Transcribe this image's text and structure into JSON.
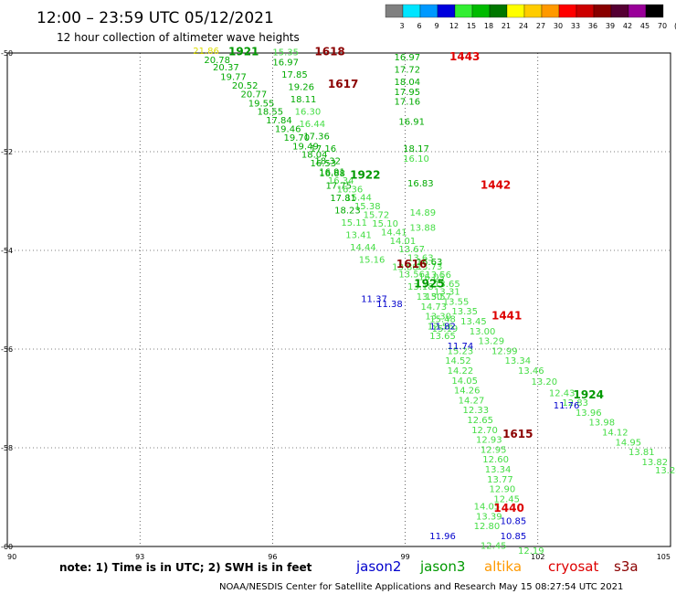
{
  "chart_data": {
    "type": "scatter",
    "title": "12:00 – 23:59 UTC 05/12/2021",
    "subtitle": "12 hour collection of altimeter wave heights",
    "xlim": [
      90,
      105
    ],
    "ylim": [
      -60,
      -50
    ],
    "x_ticks": [
      {
        "value": 90,
        "label": "90"
      },
      {
        "value": 93,
        "label": "93"
      },
      {
        "value": 96,
        "label": "96"
      },
      {
        "value": 99,
        "label": "99"
      },
      {
        "value": 102,
        "label": "102"
      },
      {
        "value": 105,
        "label": "105"
      }
    ],
    "y_ticks": [
      {
        "value": -50,
        "label": "-50"
      },
      {
        "value": -52,
        "label": "-52"
      },
      {
        "value": -54,
        "label": "-54"
      },
      {
        "value": -56,
        "label": "-56"
      },
      {
        "value": -58,
        "label": "-58"
      },
      {
        "value": -60,
        "label": "-60"
      }
    ],
    "grid": true,
    "colorbar": {
      "labels": [
        "3",
        "6",
        "9",
        "12",
        "15",
        "18",
        "21",
        "24",
        "27",
        "30",
        "33",
        "36",
        "39",
        "42",
        "45",
        "70",
        "(ft)"
      ],
      "colors": [
        "#808080",
        "#00e5ff",
        "#0099ff",
        "#0000dd",
        "#33ee33",
        "#00bb00",
        "#007700",
        "#ffff00",
        "#ffcc00",
        "#ff9900",
        "#ff0000",
        "#cc0000",
        "#880000",
        "#550033",
        "#990099",
        "#000000"
      ]
    },
    "series": [
      {
        "name": "pass-1921",
        "time_label": "1921",
        "time_pos": [
          95.0,
          -50.05
        ],
        "points": [
          {
            "x": 94.2,
            "y": -50.02,
            "v": "21.86"
          },
          {
            "x": 94.45,
            "y": -50.2,
            "v": "20.78"
          },
          {
            "x": 94.65,
            "y": -50.35,
            "v": "20.37"
          },
          {
            "x": 94.82,
            "y": -50.55,
            "v": "19.77"
          },
          {
            "x": 95.08,
            "y": -50.72,
            "v": "20.52"
          },
          {
            "x": 95.28,
            "y": -50.9,
            "v": "20.77"
          },
          {
            "x": 95.45,
            "y": -51.08,
            "v": "19.55"
          },
          {
            "x": 95.65,
            "y": -51.25,
            "v": "18.55"
          },
          {
            "x": 95.85,
            "y": -51.43,
            "v": "17.84"
          },
          {
            "x": 96.05,
            "y": -51.6,
            "v": "19.46"
          },
          {
            "x": 96.25,
            "y": -51.78,
            "v": "19.70"
          },
          {
            "x": 96.45,
            "y": -51.95,
            "v": "19.49"
          },
          {
            "x": 96.65,
            "y": -52.12,
            "v": "18.04"
          },
          {
            "x": 96.85,
            "y": -52.3,
            "v": "16.53"
          },
          {
            "x": 97.05,
            "y": -52.47,
            "v": "16.91"
          },
          {
            "x": 97.25,
            "y": -52.65,
            "v": "16.34"
          },
          {
            "x": 97.45,
            "y": -52.82,
            "v": "16.36"
          },
          {
            "x": 97.65,
            "y": -52.99,
            "v": "15.44"
          },
          {
            "x": 97.85,
            "y": -53.17,
            "v": "15.38"
          },
          {
            "x": 98.05,
            "y": -53.34,
            "v": "15.72"
          },
          {
            "x": 98.25,
            "y": -53.52,
            "v": "15.10"
          },
          {
            "x": 98.45,
            "y": -53.69,
            "v": "14.41"
          },
          {
            "x": 98.65,
            "y": -53.87,
            "v": "14.01"
          },
          {
            "x": 98.85,
            "y": -54.04,
            "v": "13.67"
          },
          {
            "x": 99.05,
            "y": -54.21,
            "v": "13.63"
          },
          {
            "x": 99.25,
            "y": -54.39,
            "v": "13.73"
          },
          {
            "x": 99.45,
            "y": -54.56,
            "v": "13.56"
          },
          {
            "x": 99.65,
            "y": -54.74,
            "v": "13.65"
          }
        ]
      },
      {
        "name": "pass-1922",
        "time_label": "1922",
        "time_pos": [
          97.75,
          -52.55
        ],
        "points": []
      },
      {
        "name": "pass-1924",
        "time_label": "1924",
        "time_pos": [
          102.8,
          -57.0
        ],
        "points": [
          {
            "x": 99.65,
            "y": -54.9,
            "v": "13.31"
          },
          {
            "x": 99.85,
            "y": -55.1,
            "v": "13.55"
          },
          {
            "x": 100.05,
            "y": -55.3,
            "v": "13.35"
          },
          {
            "x": 100.25,
            "y": -55.5,
            "v": "13.45"
          },
          {
            "x": 100.45,
            "y": -55.7,
            "v": "13.00"
          },
          {
            "x": 100.65,
            "y": -55.9,
            "v": "13.29"
          },
          {
            "x": 100.95,
            "y": -56.1,
            "v": "12.99"
          },
          {
            "x": 101.25,
            "y": -56.3,
            "v": "13.34"
          },
          {
            "x": 101.55,
            "y": -56.5,
            "v": "13.46"
          },
          {
            "x": 101.85,
            "y": -56.72,
            "v": "13.20"
          },
          {
            "x": 102.25,
            "y": -56.95,
            "v": "12.43"
          },
          {
            "x": 102.55,
            "y": -57.15,
            "v": "12.83"
          },
          {
            "x": 102.85,
            "y": -57.35,
            "v": "13.96"
          },
          {
            "x": 103.15,
            "y": -57.55,
            "v": "13.98"
          },
          {
            "x": 103.45,
            "y": -57.75,
            "v": "14.12"
          },
          {
            "x": 103.75,
            "y": -57.95,
            "v": "14.95"
          },
          {
            "x": 104.05,
            "y": -58.15,
            "v": "13.81"
          },
          {
            "x": 104.35,
            "y": -58.35,
            "v": "13.82"
          },
          {
            "x": 104.65,
            "y": -58.52,
            "v": "13.24"
          }
        ]
      },
      {
        "name": "pass-1925",
        "time_label": "1925",
        "time_pos": [
          99.2,
          -54.75
        ],
        "points": []
      },
      {
        "name": "pass-1618",
        "time_label": "1618",
        "time_pos": [
          96.95,
          -50.05
        ],
        "points": [
          {
            "x": 96.0,
            "y": -50.05,
            "v": "15.35"
          },
          {
            "x": 96.0,
            "y": -50.25,
            "v": "16.97"
          },
          {
            "x": 96.2,
            "y": -50.5,
            "v": "17.85"
          },
          {
            "x": 96.35,
            "y": -50.75,
            "v": "19.26"
          },
          {
            "x": 96.4,
            "y": -51.0,
            "v": "18.11"
          },
          {
            "x": 96.5,
            "y": -51.25,
            "v": "16.30"
          },
          {
            "x": 96.6,
            "y": -51.5,
            "v": "16.44"
          },
          {
            "x": 96.7,
            "y": -51.75,
            "v": "17.36"
          },
          {
            "x": 96.85,
            "y": -52.0,
            "v": "17.16"
          },
          {
            "x": 96.95,
            "y": -52.25,
            "v": "18.32"
          },
          {
            "x": 97.05,
            "y": -52.5,
            "v": "16.68"
          },
          {
            "x": 97.2,
            "y": -52.75,
            "v": "17.75"
          },
          {
            "x": 97.3,
            "y": -53.0,
            "v": "17.81"
          },
          {
            "x": 97.4,
            "y": -53.25,
            "v": "18.23"
          },
          {
            "x": 97.55,
            "y": -53.5,
            "v": "15.11"
          },
          {
            "x": 97.65,
            "y": -53.75,
            "v": "13.41"
          },
          {
            "x": 97.75,
            "y": -54.0,
            "v": "14.44"
          },
          {
            "x": 97.95,
            "y": -54.25,
            "v": "15.16"
          }
        ]
      },
      {
        "name": "pass-1617",
        "time_label": "1617",
        "time_pos": [
          97.25,
          -50.7
        ],
        "points": []
      },
      {
        "name": "pass-1616",
        "time_label": "1616",
        "time_pos": [
          98.8,
          -54.35
        ],
        "points": [
          {
            "x": 98.7,
            "y": -54.4,
            "v": "13.88"
          },
          {
            "x": 98.85,
            "y": -54.55,
            "v": "13.56"
          },
          {
            "x": 99.05,
            "y": -54.8,
            "v": "13.18"
          },
          {
            "x": 99.25,
            "y": -55.0,
            "v": "13.30"
          },
          {
            "x": 99.35,
            "y": -55.2,
            "v": "14.73"
          },
          {
            "x": 99.45,
            "y": -55.4,
            "v": "13.30"
          },
          {
            "x": 99.5,
            "y": -55.6,
            "v": "12.56"
          },
          {
            "x": 99.55,
            "y": -55.8,
            "v": "13.65"
          }
        ]
      },
      {
        "name": "pass-1615",
        "time_label": "1615",
        "time_pos": [
          101.2,
          -57.8
        ],
        "points": [
          {
            "x": 99.95,
            "y": -56.1,
            "v": "15.23"
          },
          {
            "x": 99.9,
            "y": -56.3,
            "v": "14.52"
          },
          {
            "x": 99.95,
            "y": -56.5,
            "v": "14.22"
          },
          {
            "x": 100.05,
            "y": -56.7,
            "v": "14.05"
          },
          {
            "x": 100.1,
            "y": -56.9,
            "v": "14.26"
          },
          {
            "x": 100.2,
            "y": -57.1,
            "v": "14.27"
          },
          {
            "x": 100.3,
            "y": -57.3,
            "v": "12.33"
          },
          {
            "x": 100.4,
            "y": -57.5,
            "v": "12.65"
          },
          {
            "x": 100.5,
            "y": -57.7,
            "v": "12.70"
          },
          {
            "x": 100.6,
            "y": -57.9,
            "v": "12.93"
          },
          {
            "x": 100.7,
            "y": -58.1,
            "v": "12.95"
          },
          {
            "x": 100.75,
            "y": -58.3,
            "v": "12.60"
          },
          {
            "x": 100.8,
            "y": -58.5,
            "v": "13.34"
          },
          {
            "x": 100.85,
            "y": -58.7,
            "v": "13.77"
          },
          {
            "x": 100.9,
            "y": -58.9,
            "v": "12.90"
          },
          {
            "x": 101.0,
            "y": -59.1,
            "v": "12.45"
          }
        ]
      },
      {
        "name": "pass-1443",
        "time_label": "1443",
        "time_pos": [
          100.0,
          -50.15
        ],
        "points": [
          {
            "x": 98.75,
            "y": -50.15,
            "v": "16.97"
          },
          {
            "x": 98.75,
            "y": -50.4,
            "v": "17.72"
          },
          {
            "x": 98.75,
            "y": -50.65,
            "v": "18.04"
          },
          {
            "x": 98.75,
            "y": -50.85,
            "v": "17.95"
          },
          {
            "x": 98.75,
            "y": -51.05,
            "v": "17.16"
          },
          {
            "x": 98.85,
            "y": -51.45,
            "v": "16.91"
          },
          {
            "x": 98.95,
            "y": -52.0,
            "v": "18.17"
          },
          {
            "x": 98.95,
            "y": -52.2,
            "v": "16.10"
          },
          {
            "x": 99.05,
            "y": -52.7,
            "v": "16.83"
          },
          {
            "x": 99.1,
            "y": -53.3,
            "v": "14.89"
          },
          {
            "x": 99.1,
            "y": -53.6,
            "v": "13.88"
          }
        ]
      },
      {
        "name": "pass-1442",
        "time_label": "1442",
        "time_pos": [
          100.7,
          -52.75
        ],
        "points": []
      },
      {
        "name": "pass-1441",
        "time_label": "1441",
        "time_pos": [
          100.95,
          -55.4
        ],
        "points": [
          {
            "x": 99.25,
            "y": -54.3,
            "v": "16.63"
          },
          {
            "x": 99.3,
            "y": -54.6,
            "v": "16.05"
          },
          {
            "x": 99.45,
            "y": -55.0,
            "v": "15.57"
          },
          {
            "x": 99.55,
            "y": -55.45,
            "v": "15.48"
          },
          {
            "x": 99.6,
            "y": -55.65,
            "v": "15.19"
          }
        ]
      },
      {
        "name": "pass-1440",
        "time_label": "1440",
        "time_pos": [
          101.0,
          -59.3
        ],
        "points": [
          {
            "x": 100.55,
            "y": -59.25,
            "v": "14.05"
          },
          {
            "x": 100.6,
            "y": -59.45,
            "v": "13.39"
          },
          {
            "x": 100.55,
            "y": -59.65,
            "v": "12.80"
          },
          {
            "x": 100.7,
            "y": -60.05,
            "v": "12.45"
          },
          {
            "x": 101.55,
            "y": -60.15,
            "v": "12.19"
          }
        ]
      },
      {
        "name": "jason2-pass",
        "time_label": "",
        "time_pos": [
          0,
          0
        ],
        "points": [
          {
            "x": 98.0,
            "y": -55.05,
            "v": "11.37"
          },
          {
            "x": 98.35,
            "y": -55.15,
            "v": "11.38"
          },
          {
            "x": 99.55,
            "y": -55.6,
            "v": "11.82"
          },
          {
            "x": 99.95,
            "y": -56.0,
            "v": "11.74"
          },
          {
            "x": 102.35,
            "y": -57.2,
            "v": "11.76"
          },
          {
            "x": 101.15,
            "y": -59.55,
            "v": "10.85"
          },
          {
            "x": 101.15,
            "y": -59.85,
            "v": "10.85"
          },
          {
            "x": 99.55,
            "y": -59.85,
            "v": "11.96"
          }
        ]
      }
    ]
  },
  "colors": {
    "jason2": "#0000cc",
    "jason3": "#009900",
    "altika": "#ff9900",
    "cryosat": "#dd0000",
    "s3a": "#8b0000",
    "light_green": "#44dd44",
    "green": "#00aa00",
    "yellow": "#dddd00"
  },
  "note": "note:  1) Time is in UTC; 2) SWH is in feet",
  "satellites": [
    {
      "label": "jason2",
      "color": "#0000cc"
    },
    {
      "label": "jason3",
      "color": "#009900"
    },
    {
      "label": "altika",
      "color": "#ff9900"
    },
    {
      "label": "cryosat",
      "color": "#dd0000"
    },
    {
      "label": "s3a",
      "color": "#8b0000"
    }
  ],
  "footer": "NOAA/NESDIS Center for Satellite Applications and Research    May 15 08:27:54 UTC 2021"
}
